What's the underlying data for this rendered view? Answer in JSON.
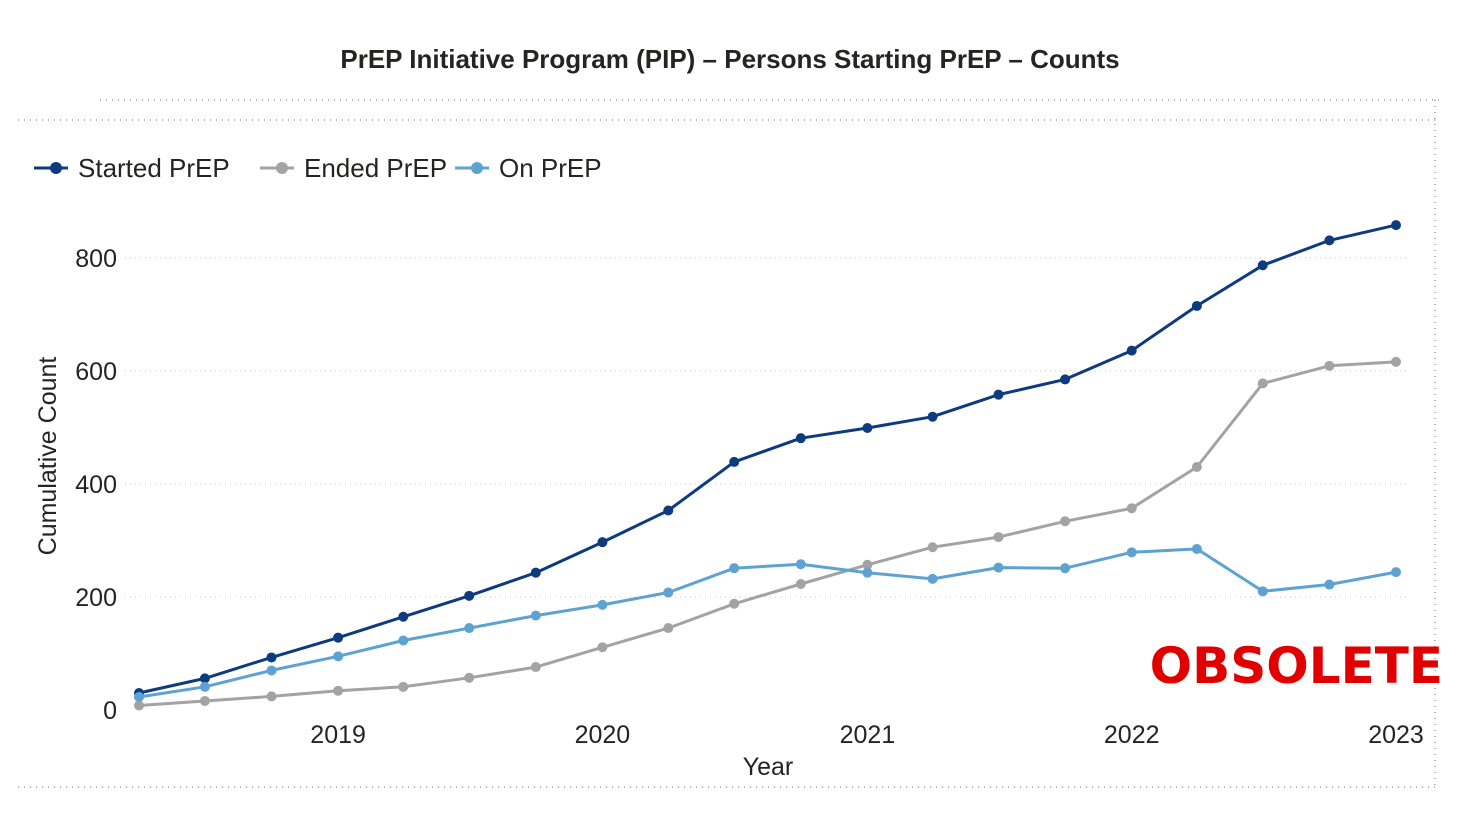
{
  "chart_data": {
    "type": "line",
    "title": "PrEP Initiative Program (PIP) – Persons Starting PrEP – Counts",
    "xlabel": "Year",
    "ylabel": "Cumulative Count",
    "xlim": [
      "2018-04-01",
      "2023-01-01"
    ],
    "ylim": [
      0,
      860
    ],
    "x_ticks": [
      {
        "date": "2019-01-01",
        "label": "2019"
      },
      {
        "date": "2020-01-01",
        "label": "2020"
      },
      {
        "date": "2021-01-01",
        "label": "2021"
      },
      {
        "date": "2022-01-01",
        "label": "2022"
      },
      {
        "date": "2023-01-01",
        "label": "2023"
      }
    ],
    "y_ticks": [
      {
        "value": 0,
        "label": "0"
      },
      {
        "value": 200,
        "label": "200"
      },
      {
        "value": 400,
        "label": "400"
      },
      {
        "value": 600,
        "label": "600"
      },
      {
        "value": 800,
        "label": "800"
      }
    ],
    "grid": true,
    "legend_position": "top-left",
    "x": [
      "2018-04-01",
      "2018-07-01",
      "2018-10-01",
      "2019-01-01",
      "2019-04-01",
      "2019-07-01",
      "2019-10-01",
      "2020-01-01",
      "2020-04-01",
      "2020-07-01",
      "2020-10-01",
      "2021-01-01",
      "2021-04-01",
      "2021-07-01",
      "2021-10-01",
      "2022-01-01",
      "2022-04-01",
      "2022-07-01",
      "2022-10-01",
      "2023-01-01"
    ],
    "series": [
      {
        "name": "Started PrEP",
        "color": "#0e3a7f",
        "values": [
          30,
          56,
          93,
          128,
          165,
          202,
          243,
          297,
          353,
          439,
          481,
          499,
          519,
          558,
          585,
          636,
          715,
          787,
          831,
          858
        ]
      },
      {
        "name": "Ended PrEP",
        "color": "#a3a3a3",
        "values": [
          8,
          16,
          24,
          34,
          41,
          57,
          76,
          111,
          145,
          188,
          223,
          257,
          288,
          306,
          334,
          357,
          430,
          578,
          609,
          616
        ]
      },
      {
        "name": "On PrEP",
        "color": "#5ea2d2",
        "values": [
          23,
          41,
          70,
          95,
          123,
          145,
          167,
          186,
          208,
          251,
          258,
          243,
          232,
          252,
          251,
          279,
          285,
          210,
          222,
          244
        ]
      }
    ]
  },
  "watermark": "OBSOLETE"
}
